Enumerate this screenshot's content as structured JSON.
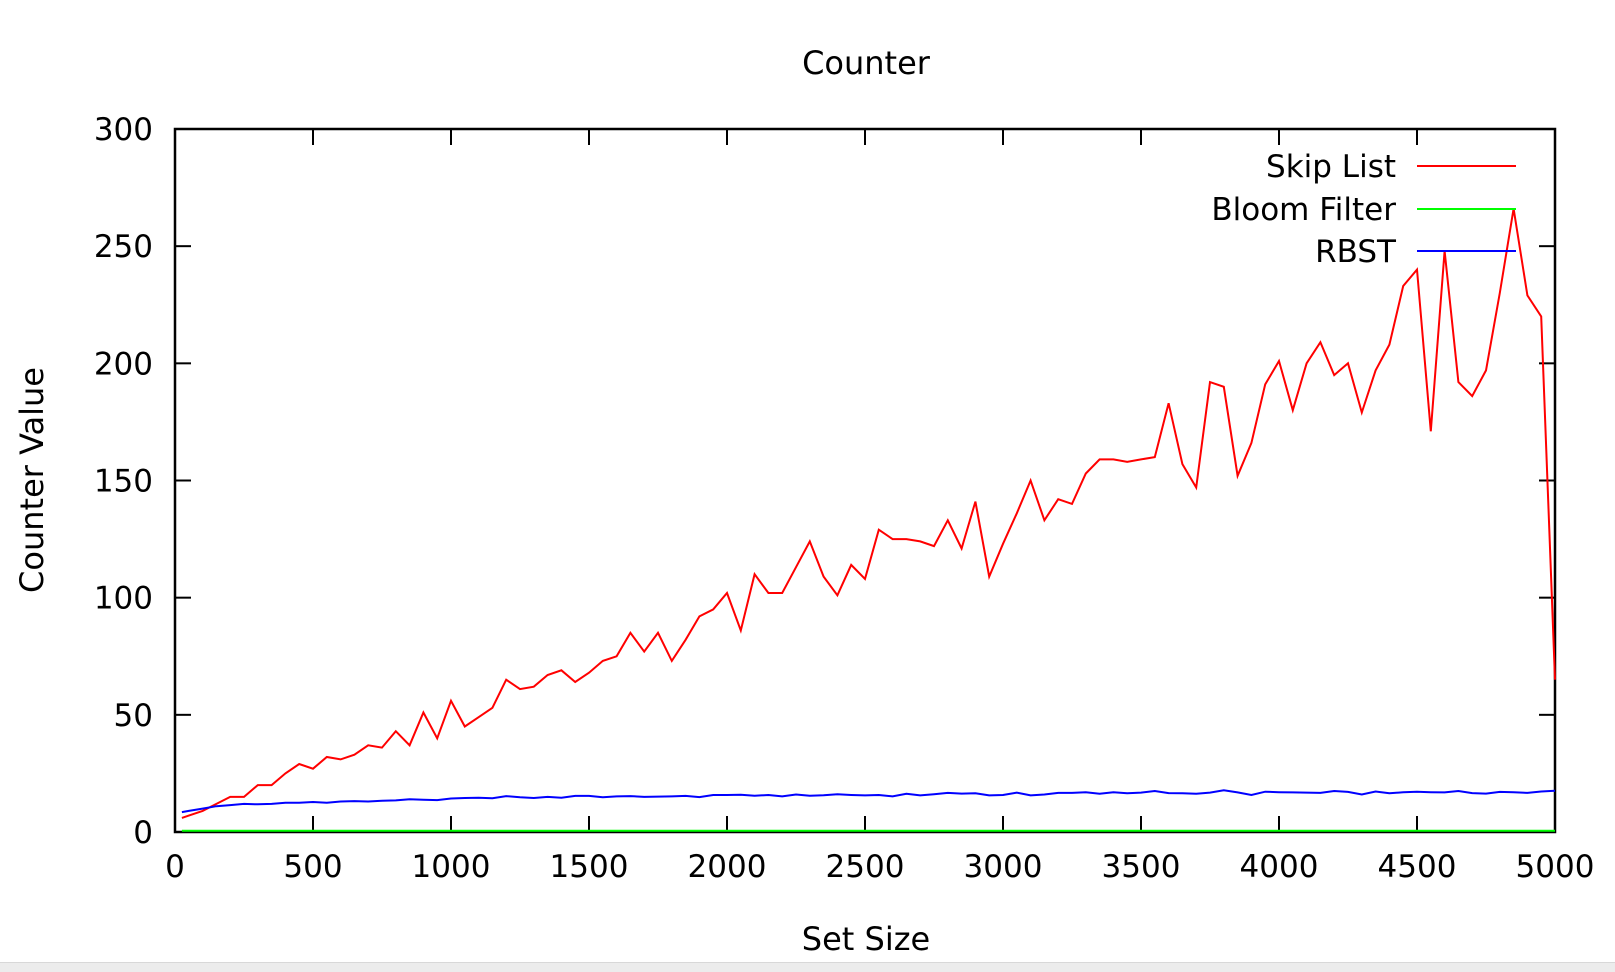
{
  "chart_data": {
    "type": "line",
    "title": "Counter",
    "xlabel": "Set Size",
    "ylabel": "Counter Value",
    "xlim": [
      0,
      5000
    ],
    "ylim": [
      0,
      300
    ],
    "xticks": [
      "0",
      "500",
      "1000",
      "1500",
      "2000",
      "2500",
      "3000",
      "3500",
      "4000",
      "4500",
      "5000"
    ],
    "yticks": [
      "0",
      "50",
      "100",
      "150",
      "200",
      "250",
      "300"
    ],
    "xtick_values": [
      0,
      500,
      1000,
      1500,
      2000,
      2500,
      3000,
      3500,
      4000,
      4500,
      5000
    ],
    "ytick_values": [
      0,
      50,
      100,
      150,
      200,
      250,
      300
    ],
    "grid": false,
    "legend_position": "top-right",
    "series": [
      {
        "name": "Skip List",
        "color": "#ff0000",
        "x": [
          25,
          50,
          100,
          150,
          200,
          250,
          300,
          350,
          400,
          450,
          500,
          550,
          600,
          650,
          700,
          750,
          800,
          850,
          900,
          950,
          1000,
          1050,
          1100,
          1150,
          1200,
          1250,
          1300,
          1350,
          1400,
          1450,
          1500,
          1550,
          1600,
          1650,
          1700,
          1750,
          1800,
          1850,
          1900,
          1950,
          2000,
          2050,
          2100,
          2150,
          2200,
          2250,
          2300,
          2350,
          2400,
          2450,
          2500,
          2550,
          2600,
          2650,
          2700,
          2750,
          2800,
          2850,
          2900,
          2950,
          3000,
          3050,
          3100,
          3150,
          3200,
          3250,
          3300,
          3350,
          3400,
          3450,
          3500,
          3550,
          3600,
          3650,
          3700,
          3750,
          3800,
          3850,
          3900,
          3950,
          4000,
          4050,
          4100,
          4150,
          4200,
          4250,
          4300,
          4350,
          4400,
          4450,
          4500,
          4550,
          4600,
          4650,
          4700,
          4750,
          4800,
          4850,
          4900,
          4950,
          5000
        ],
        "values": [
          6,
          7,
          9,
          12,
          15,
          15,
          20,
          20,
          25,
          29,
          27,
          32,
          31,
          33,
          37,
          36,
          43,
          37,
          51,
          40,
          56,
          45,
          49,
          53,
          65,
          61,
          62,
          67,
          69,
          64,
          68,
          73,
          75,
          85,
          77,
          85,
          73,
          82,
          92,
          95,
          102,
          86,
          110,
          102,
          102,
          113,
          124,
          109,
          101,
          114,
          108,
          129,
          125,
          125,
          124,
          122,
          133,
          121,
          141,
          109,
          123,
          136,
          150,
          133,
          142,
          140,
          153,
          159,
          159,
          158,
          159,
          160,
          183,
          157,
          147,
          192,
          190,
          152,
          166,
          191,
          201,
          180,
          200,
          209,
          195,
          200,
          179,
          197,
          208,
          233,
          240,
          171,
          248,
          192,
          186,
          197,
          230,
          266,
          229,
          220,
          65
        ]
      },
      {
        "name": "Bloom Filter",
        "color": "#00ff00",
        "x": [
          25,
          5000
        ],
        "values": [
          0.5,
          0.5
        ]
      },
      {
        "name": "RBST",
        "color": "#0000ff",
        "x": [
          25,
          50,
          100,
          150,
          200,
          250,
          300,
          350,
          400,
          450,
          500,
          550,
          600,
          650,
          700,
          750,
          800,
          850,
          900,
          950,
          1000,
          1050,
          1100,
          1150,
          1200,
          1250,
          1300,
          1350,
          1400,
          1450,
          1500,
          1550,
          1600,
          1650,
          1700,
          1750,
          1800,
          1850,
          1900,
          1950,
          2000,
          2050,
          2100,
          2150,
          2200,
          2250,
          2300,
          2350,
          2400,
          2450,
          2500,
          2550,
          2600,
          2650,
          2700,
          2750,
          2800,
          2850,
          2900,
          2950,
          3000,
          3050,
          3100,
          3150,
          3200,
          3250,
          3300,
          3350,
          3400,
          3450,
          3500,
          3550,
          3600,
          3650,
          3700,
          3750,
          3800,
          3850,
          3900,
          3950,
          4000,
          4050,
          4100,
          4150,
          4200,
          4250,
          4300,
          4350,
          4400,
          4450,
          4500,
          4550,
          4600,
          4650,
          4700,
          4750,
          4800,
          4850,
          4900,
          4950,
          5000
        ],
        "values": [
          8.5,
          9,
          10,
          11,
          11.5,
          12,
          11.8,
          12,
          12.5,
          12.5,
          12.8,
          12.5,
          13,
          13.2,
          13,
          13.3,
          13.5,
          14,
          13.8,
          13.6,
          14.3,
          14.5,
          14.6,
          14.4,
          15.3,
          14.8,
          14.5,
          15,
          14.6,
          15.4,
          15.4,
          14.8,
          15.2,
          15.3,
          15.0,
          15.1,
          15.2,
          15.4,
          14.9,
          15.8,
          15.8,
          15.9,
          15.5,
          15.8,
          15.2,
          16.0,
          15.5,
          15.7,
          16.1,
          15.8,
          15.6,
          15.8,
          15.2,
          16.3,
          15.6,
          16.1,
          16.7,
          16.4,
          16.5,
          15.6,
          15.8,
          16.8,
          15.6,
          16.0,
          16.7,
          16.7,
          17.0,
          16.3,
          17.0,
          16.5,
          16.8,
          17.5,
          16.6,
          16.5,
          16.3,
          16.8,
          17.8,
          16.9,
          15.8,
          17.2,
          17.0,
          16.9,
          16.8,
          16.7,
          17.5,
          17.1,
          16.0,
          17.3,
          16.5,
          17.0,
          17.2,
          17.0,
          16.9,
          17.5,
          16.6,
          16.4,
          17.1,
          17.0,
          16.7,
          17.3,
          17.6
        ]
      }
    ]
  }
}
